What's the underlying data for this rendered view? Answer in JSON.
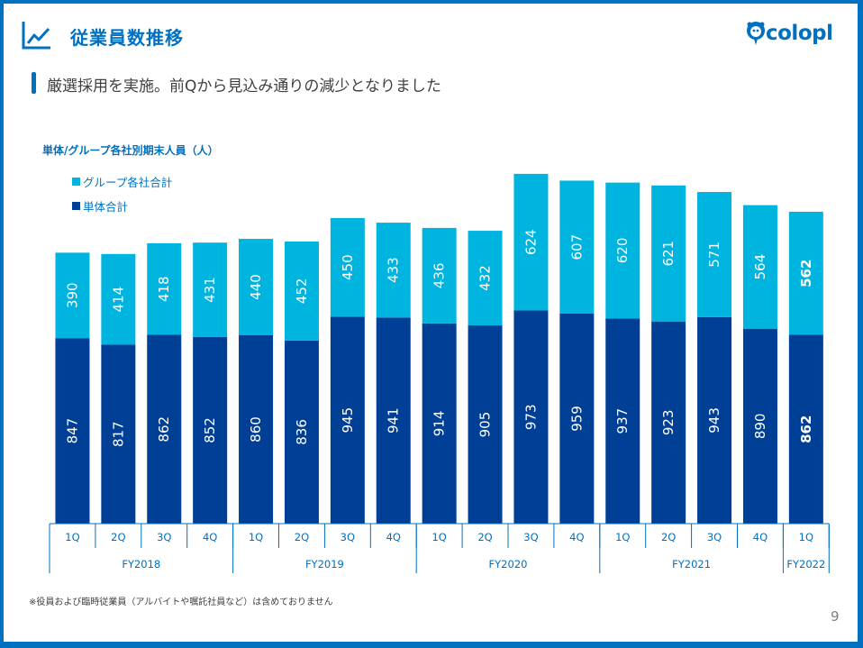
{
  "header": {
    "title": "従業員数推移",
    "title_icon": "line-chart-icon",
    "logo_text": "colopl",
    "logo_icon": "colopl-mascot-icon"
  },
  "subtitle": "厳選採用を実施。前Qから見込み通りの減少となりました",
  "footnote": "※役員および臨時従業員（アルバイトや嘱託社員など）は含めておりません",
  "page_number": "9",
  "colors": {
    "brand": "#0070c0",
    "group": "#00b4e0",
    "standalone": "#003f96"
  },
  "chart_data": {
    "type": "bar",
    "stacked": true,
    "title": "単体/グループ各社別期末人員（人）",
    "xlabel": "",
    "ylabel": "",
    "ylim": [
      0,
      1650
    ],
    "grid": false,
    "legend_position": "top-left",
    "categories": [
      "1Q",
      "2Q",
      "3Q",
      "4Q",
      "1Q",
      "2Q",
      "3Q",
      "4Q",
      "1Q",
      "2Q",
      "3Q",
      "4Q",
      "1Q",
      "2Q",
      "3Q",
      "4Q",
      "1Q"
    ],
    "fiscal_years": [
      {
        "label": "FY2018",
        "count": 4
      },
      {
        "label": "FY2019",
        "count": 4
      },
      {
        "label": "FY2020",
        "count": 4
      },
      {
        "label": "FY2021",
        "count": 4
      },
      {
        "label": "FY2022",
        "count": 1
      }
    ],
    "series": [
      {
        "name": "単体合計",
        "color": "#003f96",
        "values": [
          847,
          817,
          862,
          852,
          860,
          836,
          945,
          941,
          914,
          905,
          973,
          959,
          937,
          923,
          943,
          890,
          862
        ]
      },
      {
        "name": "グループ各社合計",
        "color": "#00b4e0",
        "values": [
          390,
          414,
          418,
          431,
          440,
          452,
          450,
          433,
          436,
          432,
          624,
          607,
          620,
          621,
          571,
          564,
          562
        ]
      }
    ],
    "legend": [
      "グループ各社合計",
      "単体合計"
    ],
    "highlight_last": true
  }
}
